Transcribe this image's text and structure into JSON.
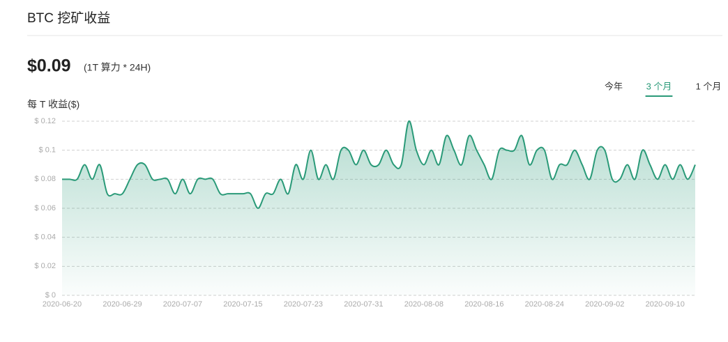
{
  "header": {
    "title": "BTC 挖矿收益"
  },
  "summary": {
    "value": "$0.09",
    "note": "(1T 算力 * 24H)"
  },
  "tabs": [
    {
      "label": "今年",
      "active": false
    },
    {
      "label": "3 个月",
      "active": true
    },
    {
      "label": "1 个月",
      "active": false
    }
  ],
  "chart_data": {
    "type": "area",
    "y_label": "每 T 收益($)",
    "color": "#2a9a78",
    "grid": true,
    "categories": [
      "2020-06-20",
      null,
      null,
      null,
      null,
      null,
      null,
      null,
      "2020-06-29",
      null,
      null,
      null,
      null,
      null,
      null,
      null,
      "2020-07-07",
      null,
      null,
      null,
      null,
      null,
      null,
      null,
      "2020-07-15",
      null,
      null,
      null,
      null,
      null,
      null,
      null,
      "2020-07-23",
      null,
      null,
      null,
      null,
      null,
      null,
      null,
      "2020-07-31",
      null,
      null,
      null,
      null,
      null,
      null,
      null,
      "2020-08-08",
      null,
      null,
      null,
      null,
      null,
      null,
      null,
      "2020-08-16",
      null,
      null,
      null,
      null,
      null,
      null,
      null,
      "2020-08-24",
      null,
      null,
      null,
      null,
      null,
      null,
      null,
      "2020-09-02",
      null,
      null,
      null,
      null,
      null,
      null,
      null,
      "2020-09-10",
      null,
      null,
      null,
      null
    ],
    "values": [
      0.08,
      0.08,
      0.08,
      0.09,
      0.08,
      0.09,
      0.07,
      0.07,
      0.07,
      0.08,
      0.09,
      0.09,
      0.08,
      0.08,
      0.08,
      0.07,
      0.08,
      0.07,
      0.08,
      0.08,
      0.08,
      0.07,
      0.07,
      0.07,
      0.07,
      0.07,
      0.06,
      0.07,
      0.07,
      0.08,
      0.07,
      0.09,
      0.08,
      0.1,
      0.08,
      0.09,
      0.08,
      0.1,
      0.1,
      0.09,
      0.1,
      0.09,
      0.09,
      0.1,
      0.09,
      0.09,
      0.12,
      0.1,
      0.09,
      0.1,
      0.09,
      0.11,
      0.1,
      0.09,
      0.11,
      0.1,
      0.09,
      0.08,
      0.1,
      0.1,
      0.1,
      0.11,
      0.09,
      0.1,
      0.1,
      0.08,
      0.09,
      0.09,
      0.1,
      0.09,
      0.08,
      0.1,
      0.1,
      0.08,
      0.08,
      0.09,
      0.08,
      0.1,
      0.09,
      0.08,
      0.09,
      0.08,
      0.09,
      0.08,
      0.09
    ],
    "ylim": [
      0,
      0.12
    ],
    "yticks": [
      {
        "value": 0,
        "label": "$ 0"
      },
      {
        "value": 0.02,
        "label": "$ 0.02"
      },
      {
        "value": 0.04,
        "label": "$ 0.04"
      },
      {
        "value": 0.06,
        "label": "$ 0.06"
      },
      {
        "value": 0.08,
        "label": "$ 0.08"
      },
      {
        "value": 0.1,
        "label": "$ 0.1"
      },
      {
        "value": 0.12,
        "label": "$ 0.12"
      }
    ]
  }
}
